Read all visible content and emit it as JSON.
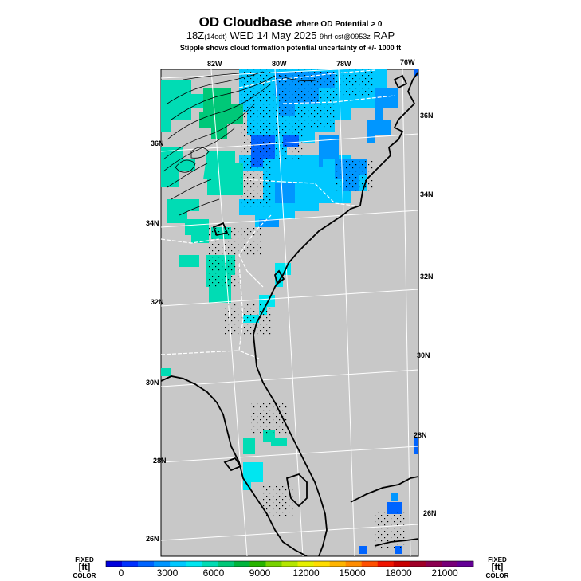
{
  "header": {
    "title": "OD Cloudbase",
    "title_note": "where OD Potential > 0",
    "valid_time": "18Z",
    "local_time": "(14edt)",
    "date": "WED 14 May 2025",
    "forecast_info": "9hrf-cst@0953z",
    "model": "RAP",
    "stipple_note": "Stipple shows cloud formation potential uncertainty of +/- 1000 ft"
  },
  "map": {
    "background_color": "#c8c8c8",
    "top_lon_labels": [
      "82W",
      "80W",
      "78W",
      "76W"
    ],
    "right_lat_labels": [
      "36N",
      "34N",
      "32N",
      "30N",
      "28N",
      "26N"
    ],
    "left_lat_labels": [
      "36N",
      "34N",
      "32N",
      "30N",
      "28N",
      "26N"
    ]
  },
  "colorbar": {
    "left_label_top": "FIXED",
    "left_label_unit": "[ft]",
    "left_label_bottom": "COLOR",
    "right_label_top": "FIXED",
    "right_label_unit": "[ft]",
    "right_label_bottom": "COLOR",
    "tick_labels": [
      "0",
      "3000",
      "6000",
      "9000",
      "12000",
      "15000",
      "18000",
      "21000"
    ],
    "colors": [
      "#0000dc",
      "#0030ff",
      "#0064ff",
      "#0096ff",
      "#00c8ff",
      "#00e6f0",
      "#00dcb4",
      "#00c878",
      "#00b43c",
      "#28b400",
      "#78d200",
      "#b4e600",
      "#e6f000",
      "#ffdc00",
      "#ffb400",
      "#ff8c00",
      "#ff5000",
      "#f01400",
      "#c80000",
      "#a00028",
      "#8c0050",
      "#780078",
      "#640096"
    ]
  }
}
